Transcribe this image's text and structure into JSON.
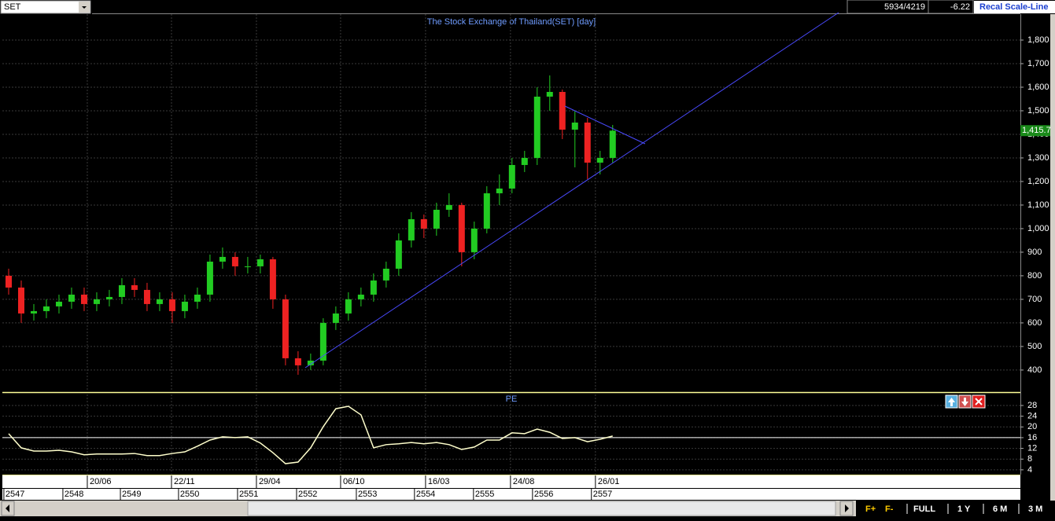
{
  "ui": {
    "symbol": "SET",
    "count": "5934/4219",
    "change": "-6.22",
    "recal": "Recal Scale-Line",
    "buttons": [
      "F+",
      "F-",
      "FULL",
      "1 Y",
      "6 M",
      "3 M"
    ]
  },
  "chart_data": [
    {
      "type": "candlestick",
      "title": "The Stock Exchange of Thailand(SET) [day]",
      "x": [
        0,
        1,
        2,
        3,
        4,
        5,
        6,
        7,
        8,
        9,
        10,
        11,
        12,
        13,
        14,
        15,
        16,
        17,
        18,
        19,
        20,
        21,
        22,
        23,
        24,
        25,
        26,
        27,
        28,
        29,
        30,
        31,
        32,
        33,
        34,
        35,
        36,
        37,
        38,
        39,
        40,
        41,
        42,
        43,
        44,
        45,
        46,
        47,
        48
      ],
      "open": [
        800,
        750,
        640,
        650,
        670,
        690,
        720,
        680,
        700,
        710,
        760,
        740,
        680,
        700,
        650,
        690,
        720,
        860,
        880,
        840,
        840,
        870,
        700,
        450,
        420,
        440,
        600,
        640,
        700,
        720,
        780,
        830,
        950,
        1040,
        1000,
        1080,
        1100,
        900,
        1000,
        1150,
        1170,
        1270,
        1300,
        1560,
        1580,
        1420,
        1450,
        1280,
        1300
      ],
      "high": [
        830,
        780,
        680,
        700,
        720,
        750,
        750,
        730,
        740,
        790,
        790,
        770,
        730,
        730,
        720,
        750,
        890,
        920,
        900,
        880,
        890,
        880,
        720,
        480,
        470,
        620,
        670,
        730,
        750,
        810,
        860,
        980,
        1070,
        1060,
        1110,
        1150,
        1110,
        1030,
        1180,
        1230,
        1300,
        1330,
        1600,
        1650,
        1590,
        1500,
        1470,
        1330,
        1440
      ],
      "low": [
        720,
        600,
        610,
        620,
        640,
        660,
        650,
        650,
        670,
        680,
        710,
        650,
        650,
        600,
        620,
        660,
        690,
        830,
        800,
        810,
        810,
        660,
        420,
        380,
        400,
        420,
        570,
        610,
        670,
        690,
        750,
        800,
        920,
        960,
        970,
        1050,
        840,
        870,
        980,
        1100,
        1150,
        1240,
        1270,
        1500,
        1380,
        1260,
        1210,
        1230,
        1280
      ],
      "close": [
        750,
        640,
        650,
        670,
        690,
        720,
        680,
        700,
        710,
        760,
        740,
        680,
        700,
        650,
        690,
        720,
        860,
        880,
        840,
        840,
        870,
        700,
        450,
        420,
        440,
        600,
        640,
        700,
        720,
        780,
        830,
        950,
        1040,
        1000,
        1080,
        1100,
        900,
        1000,
        1150,
        1170,
        1270,
        1300,
        1560,
        1580,
        1420,
        1450,
        1280,
        1300,
        1415.7
      ],
      "up_color": "#22cc22",
      "down_color": "#ee2222",
      "last_price": {
        "value": 1415.7,
        "label": "1,415.7"
      },
      "xlim": [
        -0.5,
        80.4
      ],
      "xticks": [
        {
          "value": 6.25,
          "label": "20/06"
        },
        {
          "value": 12.94,
          "label": "22/11"
        },
        {
          "value": 19.69,
          "label": "29/04"
        },
        {
          "value": 26.38,
          "label": "06/10"
        },
        {
          "value": 33.13,
          "label": "16/03"
        },
        {
          "value": 39.88,
          "label": "24/08"
        },
        {
          "value": 46.63,
          "label": "26/01"
        }
      ],
      "year_ticks": [
        {
          "value": -0.38,
          "label": "2547"
        },
        {
          "value": 4.31,
          "label": "2548"
        },
        {
          "value": 8.88,
          "label": "2549"
        },
        {
          "value": 13.5,
          "label": "2550"
        },
        {
          "value": 18.19,
          "label": "2551"
        },
        {
          "value": 22.88,
          "label": "2552"
        },
        {
          "value": 27.63,
          "label": "2553"
        },
        {
          "value": 32.25,
          "label": "2554"
        },
        {
          "value": 36.94,
          "label": "2555"
        },
        {
          "value": 41.63,
          "label": "2556"
        },
        {
          "value": 46.31,
          "label": "2557"
        }
      ],
      "ylim": [
        313,
        1910
      ],
      "yticks": [
        400,
        500,
        600,
        700,
        800,
        900,
        {
          "value": 1000,
          "label": "1,000"
        },
        {
          "value": 1100,
          "label": "1,100"
        },
        {
          "value": 1200,
          "label": "1,200"
        },
        {
          "value": 1300,
          "label": "1,300"
        },
        {
          "value": 1400,
          "label": "1,400"
        },
        {
          "value": 1500,
          "label": "1,500"
        },
        {
          "value": 1600,
          "label": "1,600"
        },
        {
          "value": 1700,
          "label": "1,700"
        },
        {
          "value": 1800,
          "label": "1,800"
        }
      ],
      "grid": true
    },
    {
      "type": "line",
      "title": "PE",
      "color": "#ffffcc",
      "x": [
        0,
        1,
        2,
        3,
        4,
        5,
        6,
        7,
        8,
        9,
        10,
        11,
        12,
        13,
        14,
        15,
        16,
        17,
        18,
        19,
        20,
        21,
        22,
        23,
        24,
        25,
        26,
        27,
        28,
        29,
        30,
        31,
        32,
        33,
        34,
        35,
        36,
        37,
        38,
        39,
        40,
        41,
        42,
        43,
        44,
        45,
        46,
        47,
        48
      ],
      "values": [
        17.5,
        12.2,
        11,
        11,
        11.3,
        10.7,
        9.6,
        9.9,
        9.9,
        9.9,
        10.1,
        9.3,
        9.3,
        10.1,
        10.7,
        12.8,
        15.1,
        16.3,
        16,
        16.3,
        14,
        10.4,
        6.3,
        6.9,
        12.2,
        20.1,
        26.8,
        27.7,
        24.5,
        12.2,
        13.4,
        13.7,
        14.2,
        13.7,
        14.2,
        13.4,
        11.6,
        12.5,
        15.1,
        15.1,
        17.8,
        17.5,
        19.2,
        18,
        15.7,
        16,
        14.5,
        15.4,
        16.6
      ],
      "reference_line": 16,
      "xlim": [
        -0.5,
        80.4
      ],
      "ylim": [
        2.5,
        32.1
      ],
      "yticks": [
        4,
        8,
        12,
        16,
        20,
        24,
        28
      ],
      "grid": true
    }
  ]
}
